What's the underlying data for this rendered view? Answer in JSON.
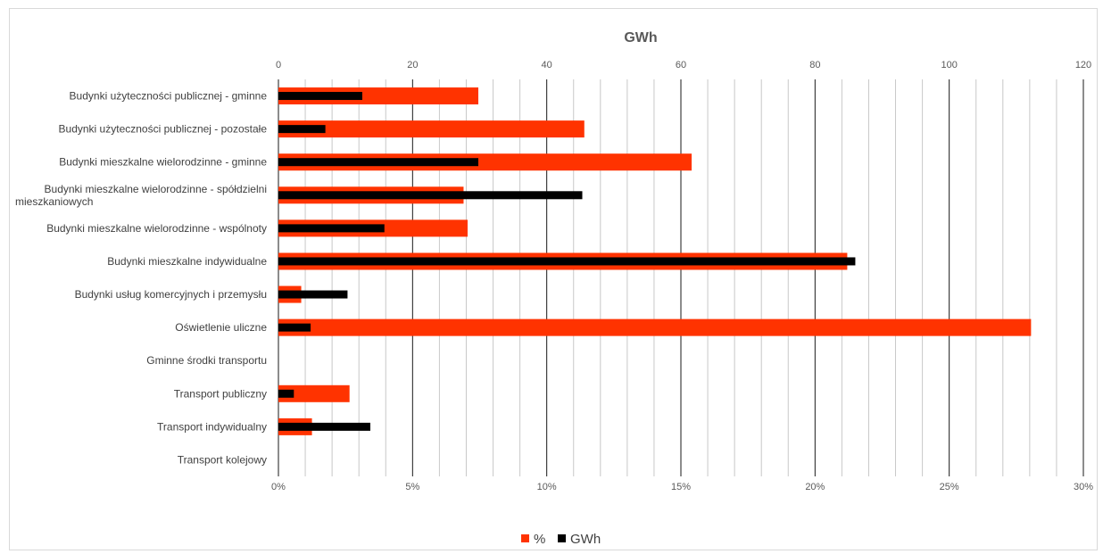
{
  "chart_data": {
    "type": "bar",
    "orientation": "horizontal",
    "title": "GWh",
    "categories": [
      "Budynki użyteczności publicznej - gminne",
      "Budynki użyteczności publicznej - pozostałe",
      "Budynki mieszkalne wielorodzinne - gminne",
      "Budynki mieszkalne wielorodzinne - spółdzielni mieszkaniowych",
      "Budynki mieszkalne wielorodzinne - wspólnoty",
      "Budynki mieszkalne indywidualne",
      "Budynki usług komercyjnych i przemysłu",
      "Oświetlenie uliczne",
      "Gminne środki transportu",
      "Transport publiczny",
      "Transport  indywidualny",
      "Transport kolejowy"
    ],
    "series": [
      {
        "name": "%",
        "axis": "bottom",
        "color": "#ff3300",
        "values": [
          7.45,
          11.4,
          15.4,
          6.9,
          7.05,
          21.2,
          0.85,
          28.05,
          0,
          2.65,
          1.25,
          0
        ]
      },
      {
        "name": "GWh",
        "axis": "top",
        "color": "#000000",
        "values": [
          12.5,
          7.0,
          29.8,
          45.3,
          15.8,
          86.0,
          10.3,
          4.8,
          0,
          2.3,
          13.7,
          0
        ]
      }
    ],
    "axis_top": {
      "label": "GWh",
      "range": [
        0,
        120
      ],
      "ticks": [
        "0",
        "20",
        "40",
        "60",
        "80",
        "100",
        "120"
      ]
    },
    "axis_bottom": {
      "range": [
        0,
        30
      ],
      "ticks": [
        "0%",
        "5%",
        "10%",
        "15%",
        "20%",
        "25%",
        "30%"
      ]
    },
    "grid": true,
    "legend_position": "bottom"
  }
}
